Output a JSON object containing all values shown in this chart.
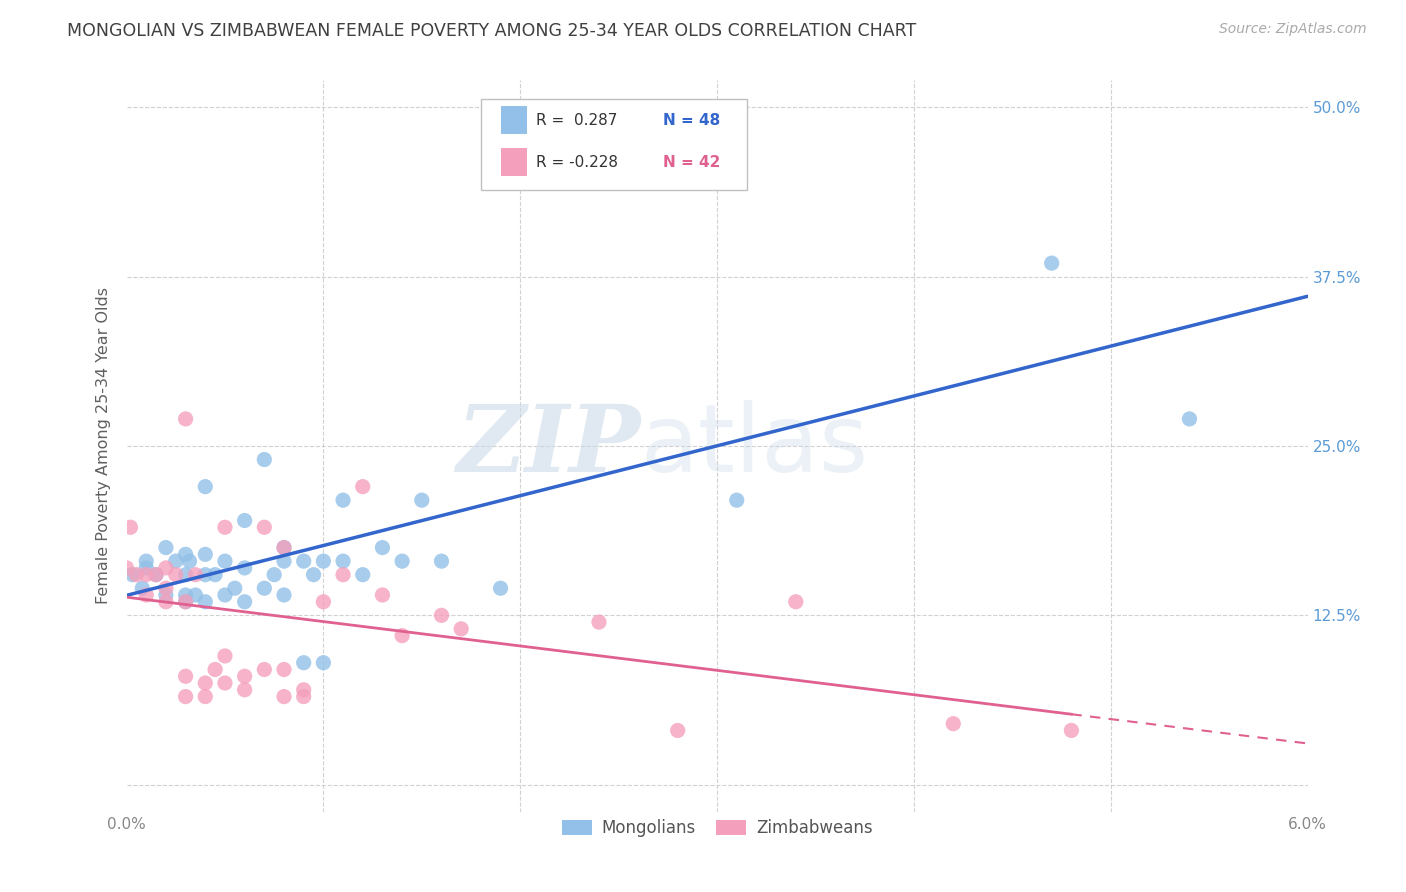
{
  "title": "MONGOLIAN VS ZIMBABWEAN FEMALE POVERTY AMONG 25-34 YEAR OLDS CORRELATION CHART",
  "source": "Source: ZipAtlas.com",
  "ylabel": "Female Poverty Among 25-34 Year Olds",
  "xlim": [
    0.0,
    0.06
  ],
  "ylim": [
    -0.02,
    0.52
  ],
  "xticks": [
    0.0,
    0.01,
    0.02,
    0.03,
    0.04,
    0.05,
    0.06
  ],
  "xticklabels": [
    "0.0%",
    "",
    "",
    "",
    "",
    "",
    "6.0%"
  ],
  "yticks": [
    0.0,
    0.125,
    0.25,
    0.375,
    0.5
  ],
  "yticklabels": [
    "",
    "12.5%",
    "25.0%",
    "37.5%",
    "50.0%"
  ],
  "mongolian_color": "#92C0E8",
  "zimbabwean_color": "#F4A0BC",
  "mongolian_line_color": "#3366CC",
  "zimbabwean_line_color": "#E06090",
  "legend_r_mongolian": "R =  0.287",
  "legend_n_mongolian": "N = 48",
  "legend_r_zimbabwean": "R = -0.228",
  "legend_n_zimbabwean": "N = 42",
  "watermark_zip": "ZIP",
  "watermark_atlas": "atlas",
  "background_color": "#ffffff",
  "grid_color": "#cccccc",
  "title_color": "#404040",
  "axis_label_color": "#606060",
  "tick_color_right": "#5B9BD5",
  "tick_color_bottom": "#888888",
  "mongolian_x": [
    0.0003,
    0.0008,
    0.001,
    0.001,
    0.0015,
    0.002,
    0.002,
    0.0025,
    0.003,
    0.003,
    0.003,
    0.003,
    0.0032,
    0.0035,
    0.004,
    0.004,
    0.004,
    0.004,
    0.0045,
    0.005,
    0.005,
    0.0055,
    0.006,
    0.006,
    0.006,
    0.007,
    0.007,
    0.0075,
    0.008,
    0.008,
    0.008,
    0.009,
    0.009,
    0.0095,
    0.01,
    0.01,
    0.011,
    0.011,
    0.012,
    0.013,
    0.014,
    0.015,
    0.016,
    0.019,
    0.024,
    0.031,
    0.047,
    0.054
  ],
  "mongolian_y": [
    0.155,
    0.145,
    0.16,
    0.165,
    0.155,
    0.14,
    0.175,
    0.165,
    0.135,
    0.14,
    0.155,
    0.17,
    0.165,
    0.14,
    0.135,
    0.155,
    0.17,
    0.22,
    0.155,
    0.14,
    0.165,
    0.145,
    0.135,
    0.16,
    0.195,
    0.145,
    0.24,
    0.155,
    0.14,
    0.165,
    0.175,
    0.09,
    0.165,
    0.155,
    0.09,
    0.165,
    0.165,
    0.21,
    0.155,
    0.175,
    0.165,
    0.21,
    0.165,
    0.145,
    0.46,
    0.21,
    0.385,
    0.27
  ],
  "zimbabwean_x": [
    0.0002,
    0.0005,
    0.001,
    0.001,
    0.0015,
    0.002,
    0.002,
    0.002,
    0.0025,
    0.003,
    0.003,
    0.003,
    0.003,
    0.0035,
    0.004,
    0.004,
    0.0045,
    0.005,
    0.005,
    0.005,
    0.006,
    0.006,
    0.007,
    0.007,
    0.008,
    0.008,
    0.008,
    0.009,
    0.009,
    0.01,
    0.011,
    0.012,
    0.013,
    0.014,
    0.016,
    0.017,
    0.024,
    0.028,
    0.034,
    0.042,
    0.048,
    0.0
  ],
  "zimbabwean_y": [
    0.19,
    0.155,
    0.14,
    0.155,
    0.155,
    0.145,
    0.16,
    0.135,
    0.155,
    0.065,
    0.08,
    0.135,
    0.27,
    0.155,
    0.065,
    0.075,
    0.085,
    0.075,
    0.095,
    0.19,
    0.07,
    0.08,
    0.085,
    0.19,
    0.065,
    0.085,
    0.175,
    0.065,
    0.07,
    0.135,
    0.155,
    0.22,
    0.14,
    0.11,
    0.125,
    0.115,
    0.12,
    0.04,
    0.135,
    0.045,
    0.04,
    0.16
  ]
}
